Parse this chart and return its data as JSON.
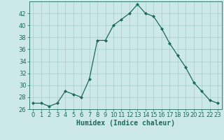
{
  "x": [
    0,
    1,
    2,
    3,
    4,
    5,
    6,
    7,
    8,
    9,
    10,
    11,
    12,
    13,
    14,
    15,
    16,
    17,
    18,
    19,
    20,
    21,
    22,
    23
  ],
  "y": [
    27,
    27,
    26.5,
    27,
    29,
    28.5,
    28,
    31,
    37.5,
    37.5,
    40,
    41,
    42,
    43.5,
    42,
    41.5,
    39.5,
    37,
    35,
    33,
    30.5,
    29,
    27.5,
    27
  ],
  "line_color": "#1a6b5a",
  "marker": "D",
  "marker_size": 2.0,
  "bg_color": "#cde8e8",
  "grid_color": "#a8cccc",
  "xlabel": "Humidex (Indice chaleur)",
  "xlabel_fontsize": 7,
  "tick_fontsize": 6,
  "xlim": [
    -0.5,
    23.5
  ],
  "ylim": [
    26,
    44
  ],
  "yticks": [
    26,
    28,
    30,
    32,
    34,
    36,
    38,
    40,
    42
  ],
  "xticks": [
    0,
    1,
    2,
    3,
    4,
    5,
    6,
    7,
    8,
    9,
    10,
    11,
    12,
    13,
    14,
    15,
    16,
    17,
    18,
    19,
    20,
    21,
    22,
    23
  ]
}
